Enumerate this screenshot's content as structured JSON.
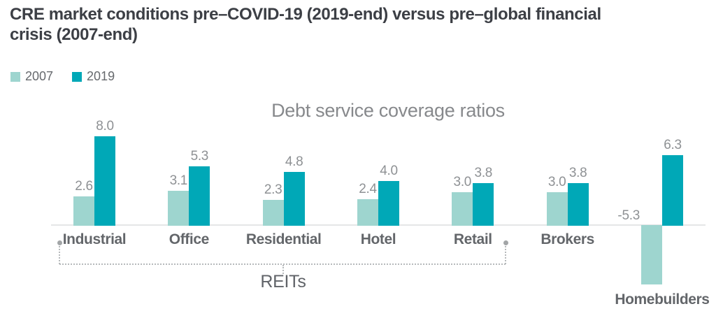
{
  "title": {
    "line1": "CRE market conditions pre–COVID-19 (2019-end) versus pre–global financial",
    "line2": "crisis (2007-end)"
  },
  "chart_data": {
    "type": "bar",
    "title": "Debt service coverage ratios",
    "categories": [
      "Industrial",
      "Office",
      "Residential",
      "Hotel",
      "Retail",
      "Brokers",
      "Homebuilders"
    ],
    "series": [
      {
        "name": "2007",
        "color": "#9ed5cf",
        "values": [
          2.6,
          3.1,
          2.3,
          2.4,
          3.0,
          3.0,
          -5.3
        ]
      },
      {
        "name": "2019",
        "color": "#00a8b7",
        "values": [
          8.0,
          5.3,
          4.8,
          4.0,
          3.8,
          3.8,
          6.3
        ]
      }
    ],
    "value_label_format": "one-decimal",
    "annotation": {
      "label": "REITs",
      "applies_to": [
        "Industrial",
        "Office",
        "Residential",
        "Hotel",
        "Retail"
      ]
    },
    "baseline": 0,
    "grid": false,
    "legend_position": "top-left",
    "ylim": [
      -6,
      9
    ],
    "colors": {
      "axis_line": "#e5e6e7",
      "value_label": "#8e9194",
      "category_label": "#63666a",
      "chart_title": "#87898c",
      "page_title": "#3c3f45",
      "bracket": "#b6b9bb"
    }
  }
}
